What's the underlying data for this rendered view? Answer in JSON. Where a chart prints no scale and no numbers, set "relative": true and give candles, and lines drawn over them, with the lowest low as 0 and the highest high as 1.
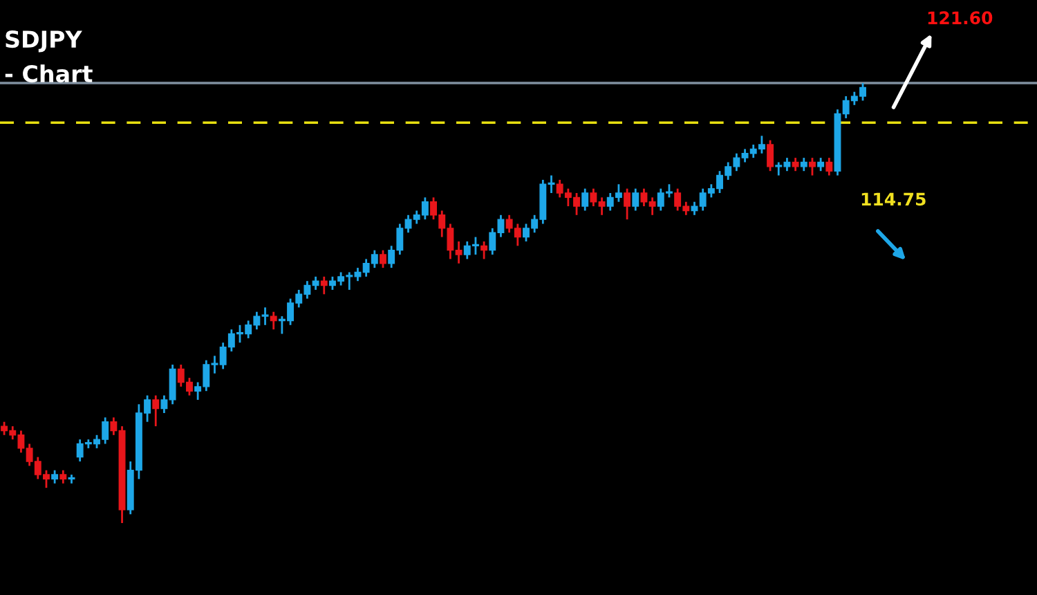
{
  "chart_data": {
    "type": "candlestick",
    "title": "SDJPY",
    "subtitle": "- Chart",
    "relative": true,
    "grid": false,
    "colors": [
      "#e8161b",
      "#e8161b",
      "#e8161b",
      "#e8161b",
      "#e8161b",
      "#e8161b",
      "#1ea7e8",
      "#e8161b",
      "#1ea7e8",
      "#1ea7e8",
      "#1ea7e8",
      "#1ea7e8",
      "#1ea7e8",
      "#e8161b",
      "#e8161b",
      "#1ea7e8",
      "#1ea7e8",
      "#1ea7e8",
      "#e8161b",
      "#1ea7e8",
      "#1ea7e8",
      "#e8161b",
      "#e8161b",
      "#1ea7e8",
      "#1ea7e8",
      "#1ea7e8",
      "#1ea7e8",
      "#1ea7e8",
      "#1ea7e8",
      "#1ea7e8",
      "#1ea7e8",
      "#1ea7e8",
      "#e8161b",
      "#1ea7e8",
      "#1ea7e8",
      "#1ea7e8",
      "#1ea7e8",
      "#1ea7e8",
      "#e8161b",
      "#1ea7e8",
      "#1ea7e8",
      "#1ea7e8",
      "#1ea7e8",
      "#1ea7e8",
      "#1ea7e8",
      "#e8161b",
      "#1ea7e8",
      "#1ea7e8",
      "#1ea7e8",
      "#1ea7e8",
      "#1ea7e8",
      "#e8161b",
      "#e8161b",
      "#e8161b",
      "#e8161b",
      "#1ea7e8",
      "#1ea7e8",
      "#e8161b",
      "#1ea7e8",
      "#1ea7e8",
      "#e8161b",
      "#e8161b",
      "#1ea7e8",
      "#1ea7e8",
      "#1ea7e8",
      "#1ea7e8",
      "#e8161b",
      "#e8161b",
      "#e8161b",
      "#1ea7e8",
      "#e8161b",
      "#e8161b",
      "#1ea7e8",
      "#1ea7e8",
      "#e8161b",
      "#1ea7e8",
      "#e8161b",
      "#e8161b",
      "#1ea7e8",
      "#1ea7e8",
      "#e8161b",
      "#e8161b",
      "#1ea7e8",
      "#1ea7e8",
      "#1ea7e8",
      "#1ea7e8",
      "#1ea7e8",
      "#1ea7e8",
      "#1ea7e8",
      "#1ea7e8",
      "#1ea7e8",
      "#e8161b",
      "#1ea7e8",
      "#1ea7e8",
      "#e8161b",
      "#1ea7e8",
      "#e8161b",
      "#1ea7e8",
      "#e8161b",
      "#1ea7e8",
      "#1ea7e8",
      "#1ea7e8",
      "#1ea7e8"
    ],
    "annotations": [
      "121.60",
      "114.75"
    ],
    "ref_lines": [
      {
        "axis": "y",
        "value": 1.0,
        "color": "#8090a0",
        "line_style": "solid"
      },
      {
        "axis": "y",
        "value": 0.91,
        "color": "#e8e010",
        "line_style": "dashed"
      }
    ],
    "categories": [
      null,
      null,
      null,
      null,
      null,
      null,
      null,
      null,
      null,
      null,
      null,
      null,
      null,
      null,
      null,
      null,
      null,
      null,
      null,
      null,
      null,
      null,
      null,
      null,
      null,
      null,
      null,
      null,
      null,
      null,
      null,
      null,
      null,
      null,
      null,
      null,
      null,
      null,
      null,
      null,
      null,
      null,
      null,
      null,
      null,
      null,
      null,
      null,
      null,
      null,
      null,
      null,
      null,
      null,
      null,
      null,
      null,
      null,
      null,
      null,
      null,
      null,
      null,
      null,
      null,
      null,
      null,
      null,
      null,
      null,
      null,
      null,
      null,
      null,
      null,
      null,
      null,
      null,
      null,
      null,
      null,
      null,
      null,
      null,
      null,
      null,
      null,
      null,
      null,
      null,
      null,
      null,
      null,
      null,
      null,
      null,
      null,
      null,
      null,
      null,
      null,
      null,
      null
    ],
    "ohlc": [
      [
        0.22,
        0.23,
        0.2,
        0.21
      ],
      [
        0.21,
        0.22,
        0.19,
        0.2
      ],
      [
        0.2,
        0.21,
        0.16,
        0.17
      ],
      [
        0.17,
        0.18,
        0.13,
        0.14
      ],
      [
        0.14,
        0.15,
        0.1,
        0.11
      ],
      [
        0.11,
        0.12,
        0.08,
        0.1
      ],
      [
        0.1,
        0.12,
        0.09,
        0.11
      ],
      [
        0.11,
        0.12,
        0.09,
        0.1
      ],
      [
        0.1,
        0.11,
        0.09,
        0.1
      ],
      [
        0.15,
        0.19,
        0.14,
        0.18
      ],
      [
        0.18,
        0.19,
        0.17,
        0.18
      ],
      [
        0.18,
        0.2,
        0.17,
        0.19
      ],
      [
        0.19,
        0.24,
        0.18,
        0.23
      ],
      [
        0.23,
        0.24,
        0.2,
        0.21
      ],
      [
        0.21,
        0.22,
        0.0,
        0.03
      ],
      [
        0.03,
        0.14,
        0.02,
        0.12
      ],
      [
        0.12,
        0.27,
        0.1,
        0.25
      ],
      [
        0.25,
        0.29,
        0.23,
        0.28
      ],
      [
        0.28,
        0.29,
        0.22,
        0.26
      ],
      [
        0.26,
        0.29,
        0.25,
        0.28
      ],
      [
        0.28,
        0.36,
        0.27,
        0.35
      ],
      [
        0.35,
        0.36,
        0.31,
        0.32
      ],
      [
        0.32,
        0.33,
        0.29,
        0.3
      ],
      [
        0.3,
        0.32,
        0.28,
        0.31
      ],
      [
        0.31,
        0.37,
        0.3,
        0.36
      ],
      [
        0.36,
        0.38,
        0.34,
        0.36
      ],
      [
        0.36,
        0.41,
        0.35,
        0.4
      ],
      [
        0.4,
        0.44,
        0.39,
        0.43
      ],
      [
        0.43,
        0.45,
        0.41,
        0.43
      ],
      [
        0.43,
        0.46,
        0.42,
        0.45
      ],
      [
        0.45,
        0.48,
        0.44,
        0.47
      ],
      [
        0.47,
        0.49,
        0.45,
        0.47
      ],
      [
        0.47,
        0.48,
        0.44,
        0.46
      ],
      [
        0.46,
        0.47,
        0.43,
        0.46
      ],
      [
        0.46,
        0.51,
        0.45,
        0.5
      ],
      [
        0.5,
        0.53,
        0.49,
        0.52
      ],
      [
        0.52,
        0.55,
        0.51,
        0.54
      ],
      [
        0.54,
        0.56,
        0.53,
        0.55
      ],
      [
        0.55,
        0.56,
        0.52,
        0.54
      ],
      [
        0.54,
        0.56,
        0.53,
        0.55
      ],
      [
        0.55,
        0.57,
        0.54,
        0.56
      ],
      [
        0.56,
        0.57,
        0.53,
        0.56
      ],
      [
        0.56,
        0.58,
        0.55,
        0.57
      ],
      [
        0.57,
        0.6,
        0.56,
        0.59
      ],
      [
        0.59,
        0.62,
        0.58,
        0.61
      ],
      [
        0.61,
        0.62,
        0.58,
        0.59
      ],
      [
        0.59,
        0.63,
        0.58,
        0.62
      ],
      [
        0.62,
        0.68,
        0.61,
        0.67
      ],
      [
        0.67,
        0.7,
        0.66,
        0.69
      ],
      [
        0.69,
        0.71,
        0.68,
        0.7
      ],
      [
        0.7,
        0.74,
        0.69,
        0.73
      ],
      [
        0.73,
        0.74,
        0.69,
        0.7
      ],
      [
        0.7,
        0.71,
        0.65,
        0.67
      ],
      [
        0.67,
        0.68,
        0.6,
        0.62
      ],
      [
        0.62,
        0.64,
        0.59,
        0.61
      ],
      [
        0.61,
        0.64,
        0.6,
        0.63
      ],
      [
        0.63,
        0.65,
        0.61,
        0.63
      ],
      [
        0.63,
        0.64,
        0.6,
        0.62
      ],
      [
        0.62,
        0.67,
        0.61,
        0.66
      ],
      [
        0.66,
        0.7,
        0.65,
        0.69
      ],
      [
        0.69,
        0.7,
        0.66,
        0.67
      ],
      [
        0.67,
        0.68,
        0.63,
        0.65
      ],
      [
        0.65,
        0.68,
        0.64,
        0.67
      ],
      [
        0.67,
        0.7,
        0.66,
        0.69
      ],
      [
        0.69,
        0.78,
        0.68,
        0.77
      ],
      [
        0.77,
        0.79,
        0.75,
        0.77
      ],
      [
        0.77,
        0.78,
        0.74,
        0.75
      ],
      [
        0.75,
        0.76,
        0.72,
        0.74
      ],
      [
        0.74,
        0.75,
        0.7,
        0.72
      ],
      [
        0.72,
        0.76,
        0.71,
        0.75
      ],
      [
        0.75,
        0.76,
        0.72,
        0.73
      ],
      [
        0.73,
        0.74,
        0.7,
        0.72
      ],
      [
        0.72,
        0.75,
        0.71,
        0.74
      ],
      [
        0.74,
        0.77,
        0.73,
        0.75
      ],
      [
        0.75,
        0.76,
        0.69,
        0.72
      ],
      [
        0.72,
        0.76,
        0.71,
        0.75
      ],
      [
        0.75,
        0.76,
        0.72,
        0.73
      ],
      [
        0.73,
        0.74,
        0.7,
        0.72
      ],
      [
        0.72,
        0.76,
        0.71,
        0.75
      ],
      [
        0.75,
        0.77,
        0.74,
        0.75
      ],
      [
        0.75,
        0.76,
        0.71,
        0.72
      ],
      [
        0.72,
        0.73,
        0.7,
        0.71
      ],
      [
        0.71,
        0.73,
        0.7,
        0.72
      ],
      [
        0.72,
        0.76,
        0.71,
        0.75
      ],
      [
        0.75,
        0.77,
        0.74,
        0.76
      ],
      [
        0.76,
        0.8,
        0.75,
        0.79
      ],
      [
        0.79,
        0.82,
        0.78,
        0.81
      ],
      [
        0.81,
        0.84,
        0.8,
        0.83
      ],
      [
        0.83,
        0.85,
        0.82,
        0.84
      ],
      [
        0.84,
        0.86,
        0.83,
        0.85
      ],
      [
        0.85,
        0.88,
        0.84,
        0.86
      ],
      [
        0.86,
        0.87,
        0.8,
        0.81
      ],
      [
        0.81,
        0.82,
        0.79,
        0.81
      ],
      [
        0.81,
        0.83,
        0.8,
        0.82
      ],
      [
        0.82,
        0.83,
        0.8,
        0.81
      ],
      [
        0.81,
        0.83,
        0.8,
        0.82
      ],
      [
        0.82,
        0.83,
        0.79,
        0.81
      ],
      [
        0.81,
        0.83,
        0.8,
        0.82
      ],
      [
        0.82,
        0.83,
        0.79,
        0.8
      ],
      [
        0.8,
        0.94,
        0.79,
        0.93
      ],
      [
        0.93,
        0.97,
        0.92,
        0.96
      ],
      [
        0.96,
        0.98,
        0.95,
        0.97
      ],
      [
        0.97,
        1.0,
        0.96,
        0.99
      ]
    ]
  }
}
